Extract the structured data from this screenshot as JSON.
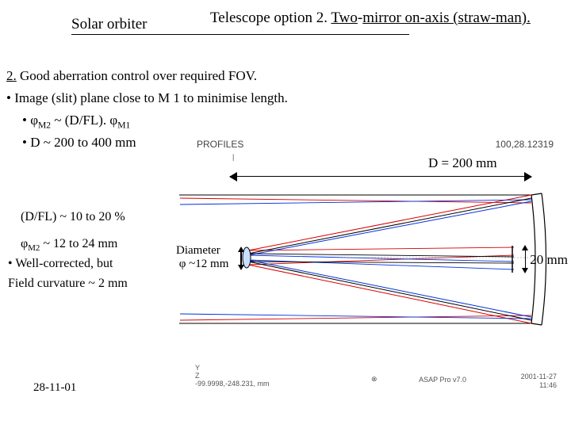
{
  "header": {
    "solar_orbiter": "Solar orbiter",
    "telescope_title_pre": "Telescope option 2. ",
    "telescope_title_u1": "Two",
    "telescope_title_mid": "-",
    "telescope_title_u2": "mirror on-axis (straw-man)."
  },
  "content": {
    "point2_label": "2.",
    "point2_text": " Good aberration control over required FOV.",
    "bullet_image": "• Image (slit) plane close to M 1 to minimise length.",
    "bullet_phi_pre": "• φ",
    "bullet_phi_sub1": "M2",
    "bullet_phi_mid": " ~ (D/FL). φ",
    "bullet_phi_sub2": "M1",
    "bullet_D": "•  D ~ 200 to 400 mm"
  },
  "leftcol": {
    "dfl": "(D/FL) ~ 10 to 20 %",
    "phim2_pre": "φ",
    "phim2_sub": "M2",
    "phim2_rest": " ~ 12 to 24 mm",
    "well_corrected": "• Well-corrected, but",
    "field_curv": "Field curvature ~ 2 mm"
  },
  "date": "28-11-01",
  "diagram": {
    "profiles": "PROFILES",
    "topright": "100,28.12319",
    "d_label": "D = 200 mm",
    "diameter_line1": "Diameter",
    "diameter_line2": "φ ~12 mm",
    "twenty": "20 mm",
    "axis": "Y\n     Z\n-99.9998,-248.231, mm",
    "asap_sym": "⊗",
    "asap_version": "ASAP Pro v7.0",
    "bottom_date": "2001-11-27",
    "bottom_time": "11:46",
    "tinymark": "|",
    "colors": {
      "black": "#000000",
      "red": "#d80000",
      "blue": "#0030dd",
      "m2fill": "#c8e0ff"
    }
  }
}
